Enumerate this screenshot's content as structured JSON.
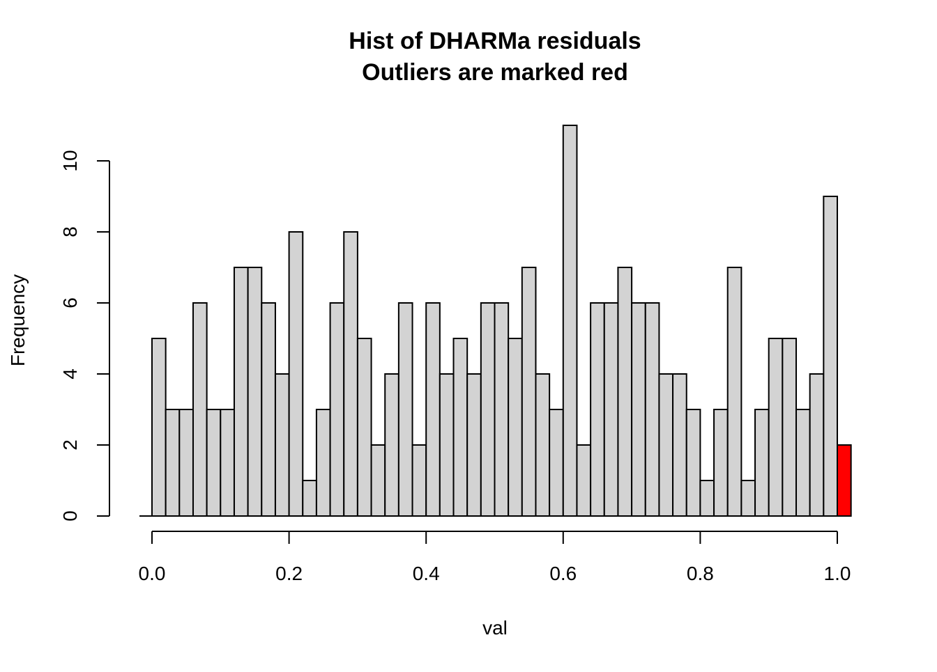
{
  "chart_data": {
    "type": "bar",
    "title": [
      "Hist of DHARMa residuals",
      "Outliers are marked red"
    ],
    "xlabel": "val",
    "ylabel": "Frequency",
    "bin_width": 0.02,
    "x_start": 0.0,
    "values": [
      5,
      3,
      3,
      6,
      3,
      3,
      7,
      7,
      6,
      4,
      8,
      1,
      3,
      6,
      8,
      5,
      2,
      4,
      6,
      2,
      6,
      4,
      5,
      4,
      6,
      6,
      5,
      7,
      4,
      3,
      11,
      2,
      6,
      6,
      7,
      6,
      6,
      4,
      4,
      3,
      1,
      3,
      7,
      1,
      3,
      5,
      5,
      3,
      4,
      9
    ],
    "outlier_bin": {
      "x_start": 1.0,
      "value": 2
    },
    "xlim": [
      0.0,
      1.02
    ],
    "ylim": [
      0,
      11
    ],
    "x_ticks": [
      0.0,
      0.2,
      0.4,
      0.6,
      0.8,
      1.0
    ],
    "x_tick_labels": [
      "0.0",
      "0.2",
      "0.4",
      "0.6",
      "0.8",
      "1.0"
    ],
    "y_ticks": [
      0,
      2,
      4,
      6,
      8,
      10
    ],
    "y_tick_labels": [
      "0",
      "2",
      "4",
      "6",
      "8",
      "10"
    ],
    "grid": false,
    "legend": "none",
    "colors": {
      "bar_fill": "#d3d3d3",
      "outlier_fill": "#ff0000",
      "stroke": "#000000"
    }
  }
}
